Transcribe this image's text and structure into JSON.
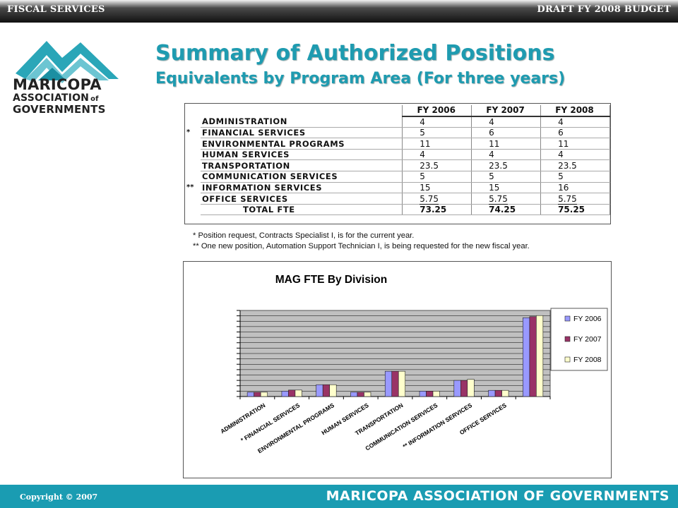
{
  "header": {
    "left": "FISCAL SERVICES",
    "right": "DRAFT FY 2008 BUDGET"
  },
  "logo": {
    "line1": "MARICOPA",
    "line2": "ASSOCIATION",
    "line2b": "of",
    "line3": "GOVERNMENTS"
  },
  "title": {
    "line1": "Summary of Authorized Positions",
    "line2": "Equivalents by Program Area (For three years)"
  },
  "table": {
    "columns": [
      "FY 2006",
      "FY 2007",
      "FY 2008"
    ],
    "rows": [
      {
        "mark": "",
        "name": "ADMINISTRATION",
        "values": [
          "4",
          "4",
          "4"
        ]
      },
      {
        "mark": "*",
        "name": "FINANCIAL SERVICES",
        "values": [
          "5",
          "6",
          "6"
        ]
      },
      {
        "mark": "",
        "name": "ENVIRONMENTAL PROGRAMS",
        "values": [
          "11",
          "11",
          "11"
        ]
      },
      {
        "mark": "",
        "name": "HUMAN SERVICES",
        "values": [
          "4",
          "4",
          "4"
        ]
      },
      {
        "mark": "",
        "name": "TRANSPORTATION",
        "values": [
          "23.5",
          "23.5",
          "23.5"
        ]
      },
      {
        "mark": "",
        "name": "COMMUNICATION SERVICES",
        "values": [
          "5",
          "5",
          "5"
        ]
      },
      {
        "mark": "**",
        "name": "INFORMATION SERVICES",
        "values": [
          "15",
          "15",
          "16"
        ]
      },
      {
        "mark": "",
        "name": "OFFICE SERVICES",
        "values": [
          "5.75",
          "5.75",
          "5.75"
        ]
      }
    ],
    "total": {
      "name": "TOTAL FTE",
      "values": [
        "73.25",
        "74.25",
        "75.25"
      ]
    }
  },
  "notes": [
    "*  Position request, Contracts Specialist I, is for the current year.",
    "** One new position, Automation Support Technician I, is being requested for the new fiscal year."
  ],
  "colors": {
    "fy2006": "#9999ff",
    "fy2007": "#993366",
    "fy2008": "#ffffcc",
    "accent": "#1e9bb0",
    "plot_bg": "#c0c0c0"
  },
  "chart_data": {
    "type": "bar",
    "title": "MAG FTE By Division",
    "categories": [
      "ADMINISTRATION",
      "*   FINANCIAL SERVICES",
      "ENVIRONMENTAL PROGRAMS",
      "HUMAN SERVICES",
      "TRANSPORTATION",
      "COMMUNICATION SERVICES",
      "**   INFORMATION SERVICES",
      "OFFICE SERVICES",
      ""
    ],
    "series": [
      {
        "name": "FY 2006",
        "values": [
          4,
          5,
          11,
          4,
          23.5,
          5,
          15,
          5.75,
          73.25
        ]
      },
      {
        "name": "FY 2007",
        "values": [
          4,
          6,
          11,
          4,
          23.5,
          5,
          15,
          5.75,
          74.25
        ]
      },
      {
        "name": "FY 2008",
        "values": [
          4,
          6,
          11,
          4,
          23.5,
          5,
          16,
          5.75,
          75.25
        ]
      }
    ],
    "ylim": [
      0,
      80
    ],
    "grid": true,
    "legend": "right"
  },
  "footer": {
    "copyright": "Copyright © 2007",
    "org": "MARICOPA ASSOCIATION OF GOVERNMENTS"
  }
}
